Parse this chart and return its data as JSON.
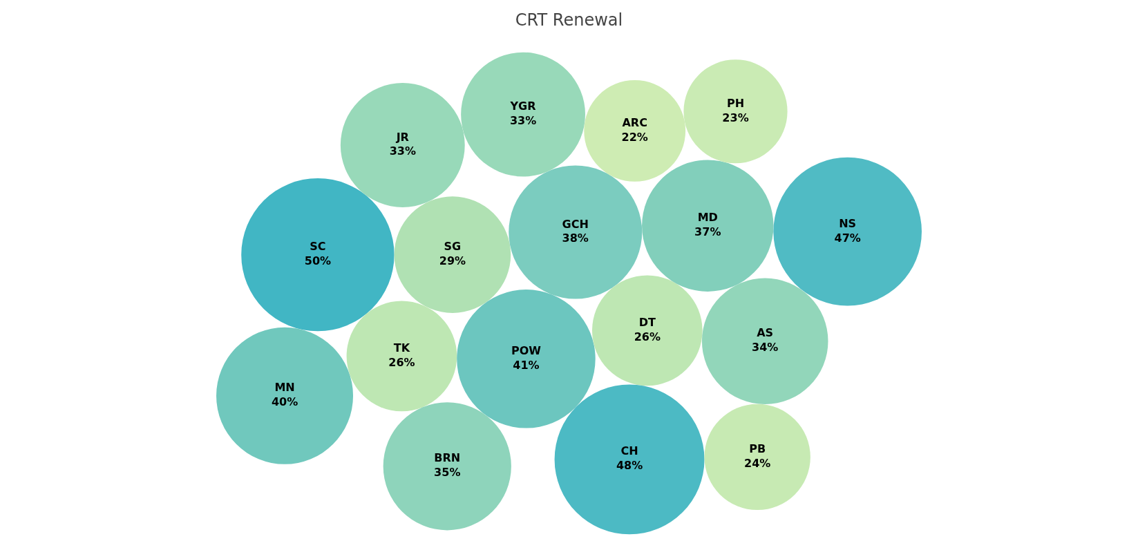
{
  "chart_data": {
    "type": "other",
    "title": "CRT Renewal",
    "categories": [
      "SC",
      "SG",
      "TK",
      "POW",
      "GCH",
      "JR",
      "YGR",
      "DT",
      "MD",
      "ARC",
      "AS",
      "CH",
      "BRN",
      "MN",
      "NS",
      "PH",
      "PB"
    ],
    "values": [
      50,
      29,
      26,
      41,
      38,
      33,
      33,
      26,
      37,
      22,
      34,
      48,
      35,
      40,
      47,
      23,
      24
    ],
    "value_labels": [
      "50%",
      "29%",
      "26%",
      "41%",
      "38%",
      "33%",
      "33%",
      "26%",
      "37%",
      "22%",
      "34%",
      "48%",
      "35%",
      "40%",
      "47%",
      "23%",
      "24%"
    ],
    "colors": [
      "#41b6c4",
      "#b0e1b3",
      "#bee7b3",
      "#6cc6bf",
      "#7bccbf",
      "#98d9b9",
      "#98d9b9",
      "#bee7b3",
      "#82cfbb",
      "#ceecb3",
      "#92d6ba",
      "#4cbac4",
      "#8ed4bb",
      "#70c8bd",
      "#50bbc4",
      "#caebb4",
      "#c7eab3"
    ]
  }
}
